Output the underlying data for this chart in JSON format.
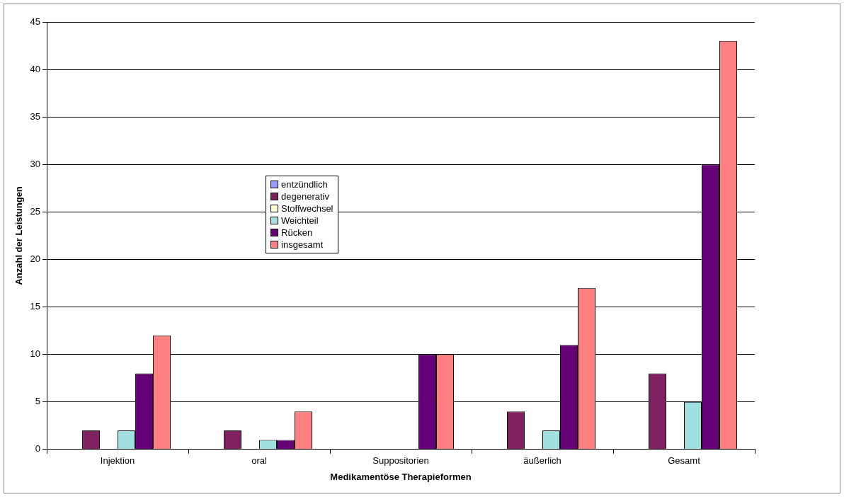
{
  "chart_data": {
    "type": "bar",
    "xlabel": "Medikamentöse Therapieformen",
    "ylabel": "Anzahl der Leistungen",
    "categories": [
      "Injektion",
      "oral",
      "Suppositorien",
      "äußerlich",
      "Gesamt"
    ],
    "series": [
      {
        "name": "entzündlich",
        "color": "#9999ff",
        "values": [
          0,
          0,
          0,
          0,
          0
        ]
      },
      {
        "name": "degenerativ",
        "color": "#7f2060",
        "values": [
          2,
          2,
          0,
          4,
          8
        ]
      },
      {
        "name": "Stoffwechsel",
        "color": "#ffffcc",
        "values": [
          0,
          0,
          0,
          0,
          0
        ]
      },
      {
        "name": "Weichteil",
        "color": "#a0e0e0",
        "values": [
          2,
          1,
          0,
          2,
          5
        ]
      },
      {
        "name": "Rücken",
        "color": "#660077",
        "values": [
          8,
          1,
          10,
          11,
          30
        ]
      },
      {
        "name": "insgesamt",
        "color": "#ff8080",
        "values": [
          12,
          4,
          10,
          17,
          43
        ]
      }
    ],
    "ylim": [
      0,
      45
    ],
    "yticks": [
      0,
      5,
      10,
      15,
      20,
      25,
      30,
      35,
      40,
      45
    ],
    "grid": "y",
    "legend": "center left"
  }
}
